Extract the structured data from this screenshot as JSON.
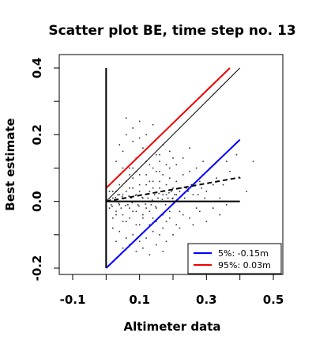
{
  "chart_data": {
    "type": "scatter",
    "title": "Scatter plot BE, time step no. 13",
    "xlabel": "Altimeter data",
    "ylabel": "Best estimate",
    "xlim": [
      -0.1,
      0.5
    ],
    "ylim": [
      -0.2,
      0.4
    ],
    "xticks": [
      "-0.1",
      "0.1",
      "0.3",
      "0.5"
    ],
    "xtick_values": [
      -0.1,
      0.1,
      0.3,
      0.5
    ],
    "yticks": [
      "-0.2",
      "0.0",
      "0.2",
      "0.4"
    ],
    "ytick_values": [
      -0.2,
      0.0,
      0.2,
      0.4
    ],
    "extra_tick_values": [
      0.0,
      0.2,
      0.4
    ],
    "extra_ytick_values": [
      -0.1,
      0.1,
      0.3
    ],
    "grid": false,
    "legend_position": "bottom-right",
    "colors": {
      "lower": "#0000ff",
      "upper": "#ee0000",
      "points": "#333333",
      "axes": "#000000"
    },
    "lines": [
      {
        "name": "5%: -0.15m",
        "color": "#0000ff",
        "style": "solid",
        "x": [
          0.0,
          0.4
        ],
        "y": [
          -0.2,
          0.185
        ]
      },
      {
        "name": "95%:  0.03m",
        "color": "#ee0000",
        "style": "solid",
        "x": [
          0.0,
          0.37
        ],
        "y": [
          0.04,
          0.4
        ]
      },
      {
        "name": "",
        "color": "#000000",
        "style": "thin",
        "x": [
          0.0,
          0.4
        ],
        "y": [
          0.0,
          0.4
        ]
      },
      {
        "name": "",
        "color": "#000000",
        "style": "dashed",
        "x": [
          0.0,
          0.4
        ],
        "y": [
          0.0,
          0.072
        ]
      },
      {
        "name": "",
        "color": "#000000",
        "style": "solid",
        "x": [
          0.0,
          0.4
        ],
        "y": [
          0.0,
          0.0
        ]
      },
      {
        "name": "",
        "color": "#000000",
        "style": "solid",
        "x": [
          0.0,
          0.0
        ],
        "y": [
          -0.2,
          0.4
        ]
      }
    ],
    "points": [
      [
        0.01,
        -0.02
      ],
      [
        0.02,
        0.01
      ],
      [
        0.03,
        0.03
      ],
      [
        0.04,
        -0.01
      ],
      [
        0.05,
        0.02
      ],
      [
        0.06,
        0.0
      ],
      [
        0.07,
        0.04
      ],
      [
        0.08,
        -0.03
      ],
      [
        0.09,
        0.02
      ],
      [
        0.1,
        0.05
      ],
      [
        0.11,
        0.01
      ],
      [
        0.12,
        -0.02
      ],
      [
        0.13,
        0.03
      ],
      [
        0.14,
        0.06
      ],
      [
        0.15,
        0.0
      ],
      [
        0.16,
        0.04
      ],
      [
        0.17,
        -0.04
      ],
      [
        0.18,
        0.02
      ],
      [
        0.19,
        0.07
      ],
      [
        0.2,
        0.01
      ],
      [
        0.02,
        -0.05
      ],
      [
        0.04,
        0.05
      ],
      [
        0.06,
        -0.06
      ],
      [
        0.08,
        0.07
      ],
      [
        0.1,
        -0.07
      ],
      [
        0.12,
        0.08
      ],
      [
        0.14,
        -0.05
      ],
      [
        0.16,
        0.09
      ],
      [
        0.18,
        -0.06
      ],
      [
        0.22,
        0.03
      ],
      [
        0.03,
        0.12
      ],
      [
        0.05,
        0.15
      ],
      [
        0.07,
        0.1
      ],
      [
        0.09,
        0.13
      ],
      [
        0.11,
        0.16
      ],
      [
        0.13,
        0.11
      ],
      [
        0.15,
        0.14
      ],
      [
        0.17,
        0.17
      ],
      [
        0.06,
        0.2
      ],
      [
        0.1,
        0.24
      ],
      [
        0.08,
        0.18
      ],
      [
        0.12,
        0.2
      ],
      [
        0.14,
        0.23
      ],
      [
        0.05,
        0.1
      ],
      [
        0.09,
        0.09
      ],
      [
        0.16,
        0.12
      ],
      [
        0.19,
        0.15
      ],
      [
        0.21,
        0.11
      ],
      [
        0.23,
        0.13
      ],
      [
        0.25,
        0.16
      ],
      [
        0.22,
        -0.03
      ],
      [
        0.24,
        0.04
      ],
      [
        0.26,
        0.02
      ],
      [
        0.28,
        0.06
      ],
      [
        0.3,
        0.03
      ],
      [
        0.32,
        0.05
      ],
      [
        0.27,
        -0.02
      ],
      [
        0.29,
        0.08
      ],
      [
        0.31,
        0.1
      ],
      [
        0.33,
        0.07
      ],
      [
        0.2,
        -0.1
      ],
      [
        0.22,
        -0.08
      ],
      [
        0.18,
        -0.12
      ],
      [
        0.25,
        -0.05
      ],
      [
        0.16,
        -0.1
      ],
      [
        0.14,
        -0.09
      ],
      [
        0.12,
        -0.11
      ],
      [
        0.1,
        -0.12
      ],
      [
        0.08,
        -0.1
      ],
      [
        0.06,
        -0.11
      ],
      [
        0.04,
        -0.09
      ],
      [
        0.02,
        -0.08
      ],
      [
        0.03,
        -0.12
      ],
      [
        0.05,
        -0.14
      ],
      [
        0.07,
        -0.13
      ],
      [
        0.09,
        -0.15
      ],
      [
        0.11,
        -0.14
      ],
      [
        0.13,
        -0.16
      ],
      [
        0.15,
        -0.13
      ],
      [
        0.17,
        -0.15
      ],
      [
        0.35,
        0.05
      ],
      [
        0.36,
        0.12
      ],
      [
        0.38,
        0.0
      ],
      [
        0.34,
        -0.04
      ],
      [
        0.37,
        0.09
      ],
      [
        0.44,
        0.12
      ],
      [
        0.4,
        0.07
      ],
      [
        0.42,
        0.03
      ],
      [
        0.39,
        0.14
      ],
      [
        0.36,
        -0.01
      ],
      [
        0.06,
        0.25
      ],
      [
        0.08,
        0.22
      ],
      [
        0.1,
        0.19
      ],
      [
        0.04,
        0.17
      ],
      [
        0.07,
        0.08
      ],
      [
        0.13,
        0.06
      ],
      [
        0.15,
        0.09
      ],
      [
        0.17,
        0.08
      ],
      [
        0.19,
        0.1
      ],
      [
        0.21,
        0.06
      ],
      [
        0.01,
        0.03
      ],
      [
        0.015,
        -0.01
      ],
      [
        0.025,
        0.0
      ],
      [
        0.035,
        0.02
      ],
      [
        0.045,
        -0.02
      ],
      [
        0.055,
        0.01
      ],
      [
        0.065,
        -0.01
      ],
      [
        0.075,
        0.01
      ],
      [
        0.085,
        0.0
      ],
      [
        0.095,
        -0.01
      ],
      [
        0.105,
        0.02
      ],
      [
        0.115,
        0.0
      ],
      [
        0.125,
        0.01
      ],
      [
        0.135,
        -0.01
      ],
      [
        0.145,
        0.02
      ],
      [
        0.155,
        0.01
      ],
      [
        0.165,
        0.03
      ],
      [
        0.175,
        0.0
      ],
      [
        0.185,
        0.01
      ],
      [
        0.195,
        0.03
      ],
      [
        0.205,
        0.02
      ],
      [
        0.215,
        0.0
      ],
      [
        0.225,
        0.04
      ],
      [
        0.235,
        0.01
      ],
      [
        0.245,
        0.03
      ],
      [
        0.255,
        0.05
      ],
      [
        0.265,
        0.0
      ],
      [
        0.275,
        0.02
      ],
      [
        0.285,
        0.04
      ],
      [
        0.295,
        0.01
      ],
      [
        0.02,
        0.06
      ],
      [
        0.04,
        0.08
      ],
      [
        0.06,
        0.06
      ],
      [
        0.08,
        0.1
      ],
      [
        0.1,
        0.08
      ],
      [
        0.12,
        0.12
      ],
      [
        0.14,
        0.1
      ],
      [
        0.16,
        0.14
      ],
      [
        0.18,
        0.11
      ],
      [
        0.2,
        0.13
      ],
      [
        0.03,
        -0.04
      ],
      [
        0.05,
        -0.06
      ],
      [
        0.07,
        -0.05
      ],
      [
        0.09,
        -0.07
      ],
      [
        0.11,
        -0.05
      ],
      [
        0.13,
        -0.07
      ],
      [
        0.15,
        -0.06
      ],
      [
        0.17,
        -0.08
      ],
      [
        0.19,
        -0.05
      ],
      [
        0.21,
        -0.07
      ],
      [
        0.23,
        -0.04
      ],
      [
        0.26,
        -0.07
      ],
      [
        0.28,
        -0.03
      ],
      [
        0.3,
        -0.06
      ],
      [
        0.32,
        -0.02
      ],
      [
        0.34,
        0.01
      ],
      [
        0.29,
        0.12
      ],
      [
        0.27,
        0.1
      ],
      [
        0.25,
        0.09
      ],
      [
        0.23,
        0.08
      ],
      [
        0.012,
        0.005
      ],
      [
        0.018,
        -0.015
      ],
      [
        0.028,
        0.012
      ],
      [
        0.038,
        -0.006
      ],
      [
        0.048,
        0.014
      ],
      [
        0.058,
        -0.012
      ],
      [
        0.068,
        0.016
      ],
      [
        0.078,
        -0.004
      ],
      [
        0.088,
        0.018
      ],
      [
        0.098,
        -0.014
      ],
      [
        0.108,
        0.012
      ],
      [
        0.118,
        -0.008
      ],
      [
        0.128,
        0.022
      ],
      [
        0.138,
        0.004
      ],
      [
        0.148,
        -0.016
      ],
      [
        0.158,
        0.024
      ],
      [
        0.168,
        0.006
      ],
      [
        0.178,
        -0.01
      ],
      [
        0.188,
        0.026
      ],
      [
        0.198,
        0.008
      ],
      [
        0.02,
        0.03
      ],
      [
        0.03,
        -0.03
      ],
      [
        0.04,
        0.02
      ],
      [
        0.05,
        -0.04
      ],
      [
        0.06,
        0.03
      ],
      [
        0.07,
        -0.02
      ],
      [
        0.08,
        0.04
      ],
      [
        0.09,
        -0.03
      ],
      [
        0.1,
        0.03
      ],
      [
        0.11,
        -0.04
      ],
      [
        0.12,
        0.05
      ],
      [
        0.13,
        -0.03
      ],
      [
        0.14,
        0.04
      ],
      [
        0.15,
        -0.02
      ],
      [
        0.16,
        0.06
      ],
      [
        0.17,
        0.02
      ],
      [
        0.18,
        0.05
      ],
      [
        0.19,
        -0.03
      ],
      [
        0.2,
        0.04
      ],
      [
        0.21,
        0.02
      ]
    ]
  }
}
